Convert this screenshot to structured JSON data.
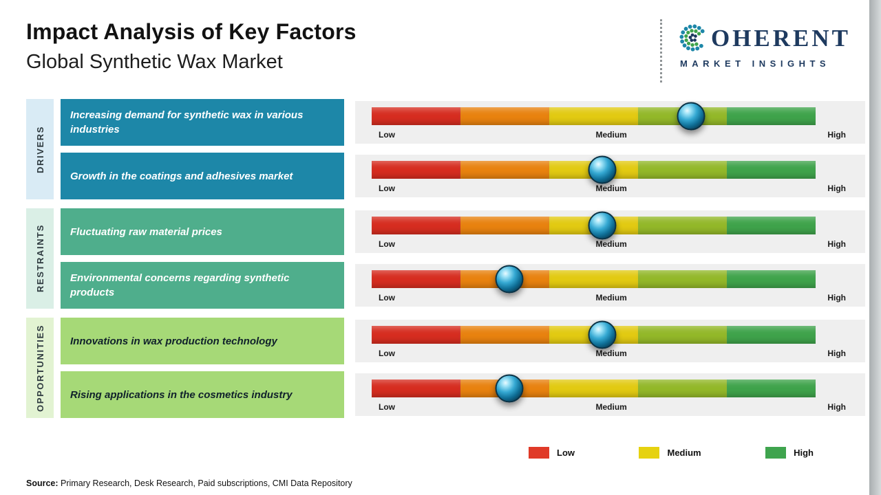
{
  "page": {
    "title": "Impact Analysis of Key Factors",
    "subtitle": "Global Synthetic Wax Market"
  },
  "logo": {
    "brand_name": "COHERENT",
    "brand_name_rest": "OHERENT",
    "brand_tagline": "MARKET INSIGHTS",
    "navy": "#1e3a5f"
  },
  "scale": {
    "low": "Low",
    "medium": "Medium",
    "high": "High",
    "colors": [
      "#d62d20",
      "#e8820f",
      "#e2ca12",
      "#93b829",
      "#3fa34b"
    ]
  },
  "groups": [
    {
      "category": "DRIVERS",
      "band_color": "#d9ebf5",
      "box_color": "#1d87a8",
      "box_text_color": "#ffffff",
      "rows": [
        {
          "factor": "Increasing demand for synthetic wax in various industries",
          "impact_percent": 72
        },
        {
          "factor": "Growth in the coatings and adhesives market",
          "impact_percent": 52
        }
      ]
    },
    {
      "category": "RESTRAINTS",
      "band_color": "#daefe6",
      "box_color": "#4fae8c",
      "box_text_color": "#ffffff",
      "rows": [
        {
          "factor": "Fluctuating raw material prices",
          "impact_percent": 52
        },
        {
          "factor": "Environmental concerns regarding synthetic products",
          "impact_percent": 31
        }
      ]
    },
    {
      "category": "OPPORTUNITIES",
      "band_color": "#e2f3d2",
      "box_color": "#a6d977",
      "box_text_color": "#10212b",
      "rows": [
        {
          "factor": "Innovations in wax production technology",
          "impact_percent": 52
        },
        {
          "factor": "Rising applications in the cosmetics industry",
          "impact_percent": 31
        }
      ]
    }
  ],
  "legend": {
    "items": [
      {
        "label": "Low",
        "color": "#e03a28"
      },
      {
        "label": "Medium",
        "color": "#e6d20f"
      },
      {
        "label": "High",
        "color": "#3fa44e"
      }
    ]
  },
  "source": {
    "label": "Source:",
    "text": " Primary Research, Desk Research, Paid subscriptions, CMI Data Repository"
  },
  "chart_data": {
    "type": "bar",
    "title": "Impact Analysis of Key Factors",
    "subtitle": "Global Synthetic Wax Market",
    "scale_labels": [
      "Low",
      "Medium",
      "High"
    ],
    "scale_range": [
      0,
      100
    ],
    "legend": [
      "Low",
      "Medium",
      "High"
    ],
    "rows": [
      {
        "category": "Drivers",
        "factor": "Increasing demand for synthetic wax in various industries",
        "impact_percent": 72,
        "impact_level": "Medium-High"
      },
      {
        "category": "Drivers",
        "factor": "Growth in the coatings and adhesives market",
        "impact_percent": 52,
        "impact_level": "Medium"
      },
      {
        "category": "Restraints",
        "factor": "Fluctuating raw material prices",
        "impact_percent": 52,
        "impact_level": "Medium"
      },
      {
        "category": "Restraints",
        "factor": "Environmental concerns regarding synthetic products",
        "impact_percent": 31,
        "impact_level": "Low-Medium"
      },
      {
        "category": "Opportunities",
        "factor": "Innovations in wax production technology",
        "impact_percent": 52,
        "impact_level": "Medium"
      },
      {
        "category": "Opportunities",
        "factor": "Rising applications in the cosmetics industry",
        "impact_percent": 31,
        "impact_level": "Low-Medium"
      }
    ]
  }
}
